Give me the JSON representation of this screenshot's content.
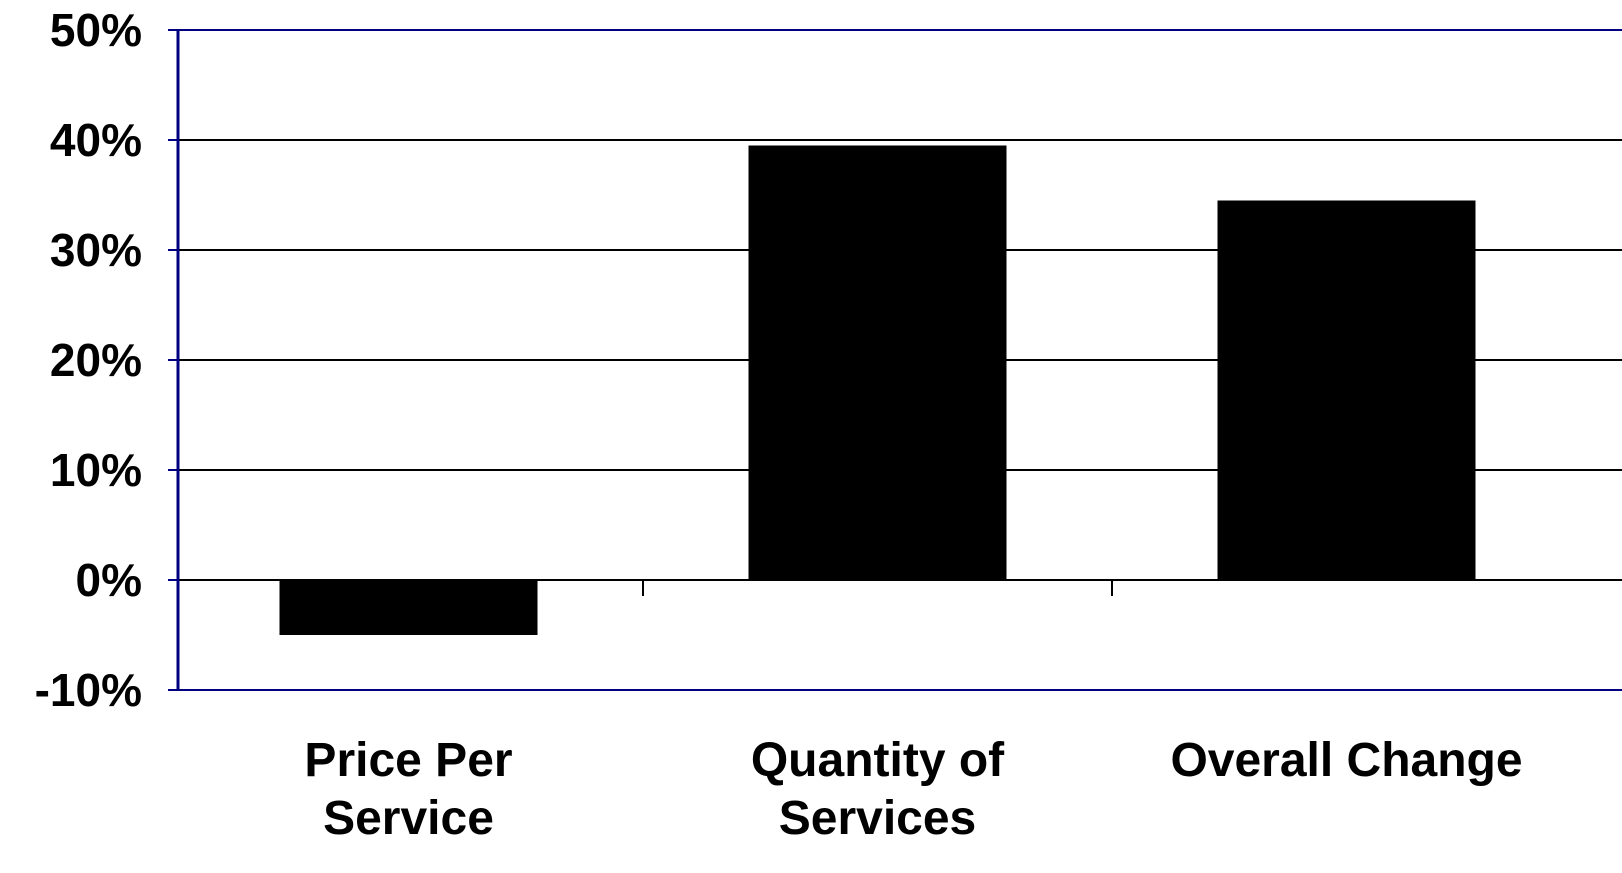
{
  "chart_data": {
    "type": "bar",
    "categories": [
      [
        "Price Per",
        "Service"
      ],
      [
        "Quantity of",
        "Services"
      ],
      [
        "Overall Change"
      ]
    ],
    "values": [
      -5,
      39.5,
      34.5
    ],
    "ylim": [
      -10,
      50
    ],
    "yticks": [
      50,
      40,
      30,
      20,
      10,
      0,
      -10
    ],
    "ytick_labels": [
      "50%",
      "40%",
      "30%",
      "20%",
      "10%",
      "0%",
      "-10%"
    ],
    "grid": true,
    "bar_color": "#000000",
    "axis_color": "#000080",
    "grid_color": "#000000"
  }
}
